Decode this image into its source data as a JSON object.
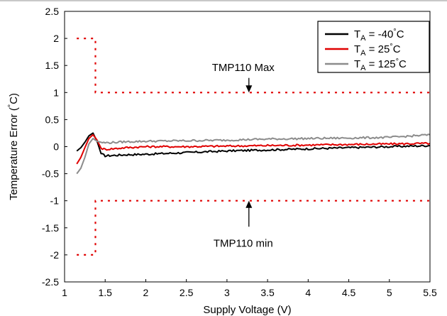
{
  "chart_data": {
    "type": "line",
    "xlabel": "Supply Voltage (V)",
    "ylabel": "Temperature Error (°C)",
    "xlim": [
      1,
      5.5
    ],
    "ylim": [
      -2.5,
      2.5
    ],
    "x_ticks": [
      "1",
      "1.5",
      "2",
      "2.5",
      "3",
      "3.5",
      "4",
      "4.5",
      "5",
      "5.5"
    ],
    "y_ticks": [
      "2.5",
      "2",
      "1.5",
      "1",
      "0.5",
      "0",
      "-0.5",
      "-1",
      "-1.5",
      "-2",
      "-2.5"
    ],
    "grid": false,
    "legend_position": "top-right",
    "legend": [
      {
        "prefix": "T",
        "sub": "A",
        "suffix": " = -40°C",
        "color": "#000000"
      },
      {
        "prefix": "T",
        "sub": "A",
        "suffix": " = 25°C",
        "color": "#e00000"
      },
      {
        "prefix": "T",
        "sub": "A",
        "suffix": " = 125°C",
        "color": "#8c8c8c"
      }
    ],
    "series": [
      {
        "color": "#000000",
        "x": [
          1.15,
          1.2,
          1.25,
          1.3,
          1.35,
          1.4,
          1.45,
          1.5,
          1.75,
          2,
          2.5,
          3,
          3.5,
          4,
          4.5,
          5,
          5.5
        ],
        "y": [
          -0.08,
          -0.02,
          0.08,
          0.2,
          0.25,
          0.1,
          -0.13,
          -0.17,
          -0.15,
          -0.14,
          -0.11,
          -0.08,
          -0.06,
          -0.04,
          -0.02,
          0.0,
          0.02
        ]
      },
      {
        "color": "#e00000",
        "x": [
          1.15,
          1.2,
          1.25,
          1.3,
          1.35,
          1.4,
          1.45,
          1.5,
          1.75,
          2,
          2.5,
          3,
          3.5,
          4,
          4.5,
          5,
          5.5
        ],
        "y": [
          -0.32,
          -0.2,
          -0.02,
          0.15,
          0.22,
          0.12,
          -0.03,
          -0.05,
          -0.02,
          0.0,
          0.0,
          0.01,
          0.02,
          0.03,
          0.04,
          0.05,
          0.06
        ]
      },
      {
        "color": "#8c8c8c",
        "x": [
          1.15,
          1.2,
          1.25,
          1.3,
          1.35,
          1.4,
          1.45,
          1.5,
          1.75,
          2,
          2.5,
          3,
          3.5,
          4,
          4.5,
          5,
          5.5
        ],
        "y": [
          -0.5,
          -0.4,
          -0.2,
          0.05,
          0.15,
          0.1,
          0.08,
          0.07,
          0.09,
          0.1,
          0.11,
          0.12,
          0.14,
          0.15,
          0.16,
          0.17,
          0.22
        ]
      }
    ],
    "limit_lines": [
      {
        "name": "max",
        "x": [
          1.15,
          1.38,
          1.38,
          5.5
        ],
        "y": [
          2,
          2,
          1,
          1
        ],
        "color": "#e00000"
      },
      {
        "name": "min",
        "x": [
          1.15,
          1.38,
          1.38,
          5.5
        ],
        "y": [
          -2,
          -2,
          -1,
          -1
        ],
        "color": "#e00000"
      }
    ],
    "annotations": [
      {
        "name": "max",
        "text": "TMP110 Max",
        "text_x": 3.2,
        "text_y": 1.4,
        "arrow_x": 3.27,
        "arrow_from": 1.27,
        "arrow_to": 1.0
      },
      {
        "name": "min",
        "text": "TMP110 min",
        "text_x": 3.2,
        "text_y": -1.85,
        "arrow_x": 3.27,
        "arrow_from": -1.48,
        "arrow_to": -1.0
      }
    ]
  }
}
